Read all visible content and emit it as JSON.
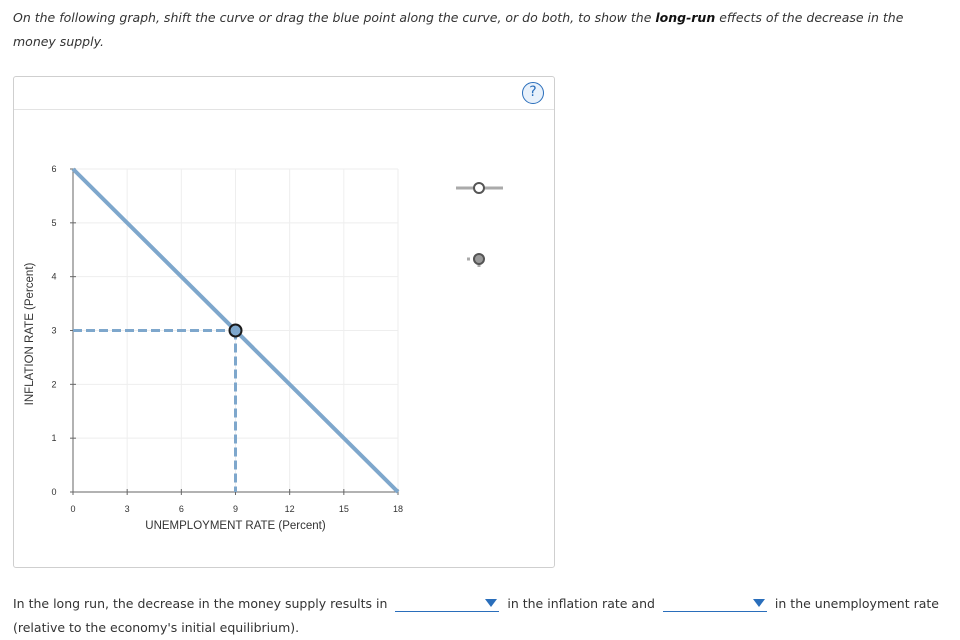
{
  "question": {
    "part1": "On the following graph, shift the curve or drag the blue point along the curve, or do both, to show the ",
    "emphasis": "long-run",
    "part2": " effects of the decrease in the money supply."
  },
  "panel": {
    "help_label": "?"
  },
  "chart_data": {
    "type": "line",
    "xlabel": "UNEMPLOYMENT RATE (Percent)",
    "ylabel": "INFLATION RATE (Percent)",
    "xlim": [
      0,
      18
    ],
    "ylim": [
      0,
      6
    ],
    "xticks": [
      0,
      3,
      6,
      9,
      12,
      15,
      18
    ],
    "yticks": [
      0,
      1,
      2,
      3,
      4,
      5,
      6
    ],
    "grid": true,
    "series": [
      {
        "values_x": [
          0,
          18
        ],
        "values_y": [
          6,
          0
        ],
        "color": "#7ea7cc"
      }
    ],
    "point": {
      "x": 9,
      "y": 3,
      "dashed_guides": true,
      "color": "#7ea7cc"
    }
  },
  "palette": {
    "curve_tool_color": "#aaaaaa",
    "point_tool_color": "#aaaaaa"
  },
  "answer": {
    "text1": "In the long run, the decrease in the money supply results in",
    "dropdown1_value": "",
    "text2": "in the inflation rate and",
    "dropdown2_value": "",
    "text3": "in the unemployment rate",
    "text4": "(relative to the economy's initial equilibrium)."
  },
  "colors": {
    "accent": "#2a6ebb",
    "curve": "#7ea7cc"
  }
}
